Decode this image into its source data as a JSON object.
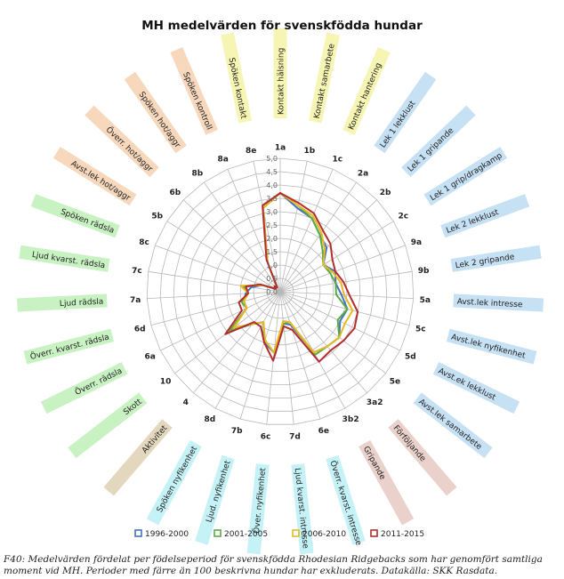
{
  "chart_data": {
    "type": "radar",
    "title": "MH medelvärden för svenskfödda hundar",
    "r_range": [
      0,
      5
    ],
    "r_ticks": [
      "0,0",
      "0,5",
      "1,0",
      "1,5",
      "2,0",
      "2,5",
      "3,0",
      "3,5",
      "4,0",
      "4,5",
      "5,0"
    ],
    "axes": [
      {
        "code": "1a",
        "label": "Kontakt hälsning",
        "group": "kontakt"
      },
      {
        "code": "1b",
        "label": "Kontakt samarbete",
        "group": "kontakt"
      },
      {
        "code": "1c",
        "label": "Kontakt hantering",
        "group": "kontakt"
      },
      {
        "code": "2a",
        "label": "Lek 1 lekklust",
        "group": "lek"
      },
      {
        "code": "2b",
        "label": "Lek 1 gripande",
        "group": "lek"
      },
      {
        "code": "2c",
        "label": "Lek 1 grip/dragkamp",
        "group": "lek"
      },
      {
        "code": "9a",
        "label": "Lek 2 lekklust",
        "group": "lek"
      },
      {
        "code": "9b",
        "label": "Lek 2 gripande",
        "group": "lek"
      },
      {
        "code": "5a",
        "label": "Avst.lek intresse",
        "group": "lek"
      },
      {
        "code": "5c",
        "label": "Avst.lek nyfikenhet",
        "group": "lek"
      },
      {
        "code": "5d",
        "label": "Avst.ek lekklust",
        "group": "lek"
      },
      {
        "code": "5e",
        "label": "Avst.lek samarbete",
        "group": "lek"
      },
      {
        "code": "3a2",
        "label": "Förföljande",
        "group": "jakt"
      },
      {
        "code": "3b2",
        "label": "Gripande",
        "group": "jakt"
      },
      {
        "code": "6e",
        "label": "Överr. kvarst. intresse",
        "group": "nyfik"
      },
      {
        "code": "7d",
        "label": "Ljud kvarst. intresse",
        "group": "nyfik"
      },
      {
        "code": "6c",
        "label": "Över. nyfikenhet",
        "group": "nyfik"
      },
      {
        "code": "7b",
        "label": "Ljud. nyfikenhet",
        "group": "nyfik"
      },
      {
        "code": "8d",
        "label": "Spöken nyfikenhet",
        "group": "nyfik"
      },
      {
        "code": "4",
        "label": "Aktivitet",
        "group": "aktivitet"
      },
      {
        "code": "10",
        "label": "Skott",
        "group": "radsla"
      },
      {
        "code": "6a",
        "label": "Överr. rädsla",
        "group": "radsla"
      },
      {
        "code": "6d",
        "label": "Överr. kvarst. rädsla",
        "group": "radsla"
      },
      {
        "code": "7a",
        "label": "Ljud rädsla",
        "group": "radsla"
      },
      {
        "code": "7c",
        "label": "Ljud kvarst. rädsla",
        "group": "radsla"
      },
      {
        "code": "8c",
        "label": "Spöken rädsla",
        "group": "radsla"
      },
      {
        "code": "5b",
        "label": "Avst.lek hot/aggr",
        "group": "aggr"
      },
      {
        "code": "6b",
        "label": "Överr. hot/aggr",
        "group": "aggr"
      },
      {
        "code": "8b",
        "label": "Spöken hot/aggr",
        "group": "aggr"
      },
      {
        "code": "8a",
        "label": "Spöken kontroll",
        "group": "aggr"
      },
      {
        "code": "8e",
        "label": "Spöken kontakt",
        "group": "kontakt"
      }
    ],
    "group_colors": {
      "kontakt": "#f7f5b3",
      "lek": "#c6e0f4",
      "jakt": "#ead1cc",
      "nyfik": "#c5f2f6",
      "aktivitet": "#e3d8bd",
      "radsla": "#c8f2c2",
      "aggr": "#f7d8bc"
    },
    "series": [
      {
        "name": "1996-2000",
        "color": "#4472c4",
        "values": [
          3.7,
          3.2,
          3.0,
          2.6,
          2.4,
          1.9,
          2.2,
          2.1,
          2.3,
          2.6,
          2.5,
          2.8,
          2.7,
          2.6,
          1.3,
          1.2,
          2.3,
          2.0,
          1.3,
          1.6,
          2.4,
          1.4,
          1.4,
          1.3,
          1.1,
          0.7,
          0.2,
          0.3,
          0.2,
          1.2,
          3.2
        ]
      },
      {
        "name": "2001-2005",
        "color": "#5aaa46",
        "values": [
          3.7,
          3.3,
          3.0,
          2.6,
          2.2,
          1.9,
          2.0,
          2.1,
          2.1,
          2.6,
          2.4,
          2.8,
          2.7,
          2.7,
          1.2,
          1.2,
          2.3,
          1.9,
          1.3,
          1.6,
          2.4,
          1.4,
          1.5,
          1.2,
          1.4,
          0.7,
          0.2,
          0.3,
          0.2,
          1.2,
          3.2
        ]
      },
      {
        "name": "2006-2010",
        "color": "#e8b923",
        "values": [
          3.7,
          3.3,
          3.1,
          2.7,
          2.3,
          1.9,
          2.1,
          2.3,
          2.4,
          2.8,
          2.7,
          2.8,
          2.7,
          2.6,
          1.2,
          1.1,
          2.3,
          1.9,
          1.3,
          1.6,
          2.2,
          1.4,
          1.4,
          1.2,
          1.5,
          0.7,
          0.2,
          0.3,
          0.2,
          1.2,
          3.2
        ]
      },
      {
        "name": "2011-2015",
        "color": "#b22d2d",
        "values": [
          3.7,
          3.4,
          3.2,
          2.8,
          2.6,
          2.3,
          2.2,
          2.4,
          2.6,
          3.0,
          3.1,
          3.0,
          2.9,
          3.0,
          1.5,
          1.3,
          2.6,
          2.0,
          1.5,
          1.5,
          2.6,
          1.6,
          1.6,
          1.2,
          1.3,
          0.8,
          0.2,
          0.3,
          0.2,
          1.3,
          3.3
        ]
      }
    ]
  },
  "caption_line1": "F40: Medelvärden fördelat per födelseperiod för svenskfödda Rhodesian Ridgebacks som har genomfört samtliga",
  "caption_line2": "moment vid MH. Perioder med färre än 100 beskrivna hundar har exkluderats. Datakälla: SKK Rasdata."
}
